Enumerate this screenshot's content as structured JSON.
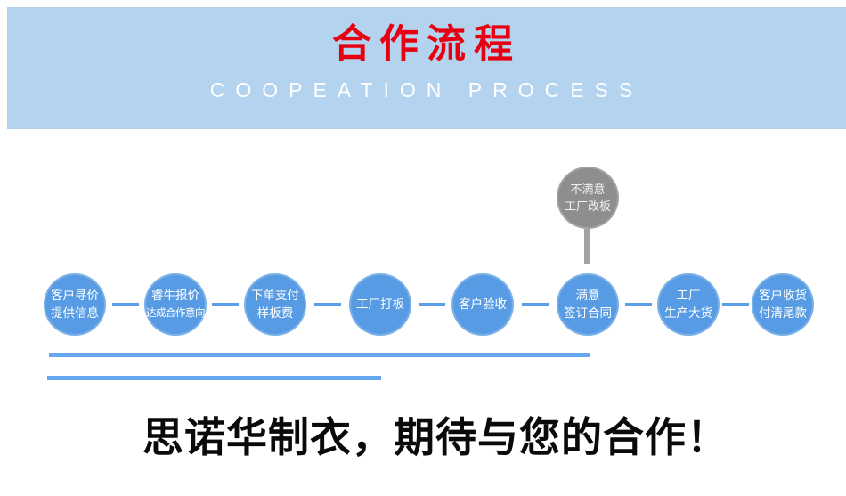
{
  "header": {
    "title": "合作流程",
    "subtitle": "COOPEATION PROCESS",
    "bg_color": "#b4d3ee",
    "title_color": "#e60012",
    "subtitle_color": "#ffffff"
  },
  "flow": {
    "node_color": "#569be3",
    "connector_color": "#5b9de8",
    "reject_node": {
      "line1": "不满意",
      "line2": "工厂改板",
      "color": "#8e8e8e",
      "connector_color": "#a2a2a2"
    },
    "steps": [
      {
        "line1": "客户寻价",
        "line2": "提供信息"
      },
      {
        "line1": "睿牛报价",
        "line2": "达成合作意向"
      },
      {
        "line1": "下单支付",
        "line2": "样板费"
      },
      {
        "line1": "工厂打板",
        "line2": ""
      },
      {
        "line1": "客户验收",
        "line2": ""
      },
      {
        "line1": "满意",
        "line2": "签订合同"
      },
      {
        "line1": "工厂",
        "line2": "生产大货"
      },
      {
        "line1": "客户收货",
        "line2": "付清尾款"
      }
    ]
  },
  "underlines": {
    "color": "#64a6f0"
  },
  "footer": {
    "slogan": "思诺华制衣，期待与您的合作！",
    "color": "#0a0a0a"
  }
}
